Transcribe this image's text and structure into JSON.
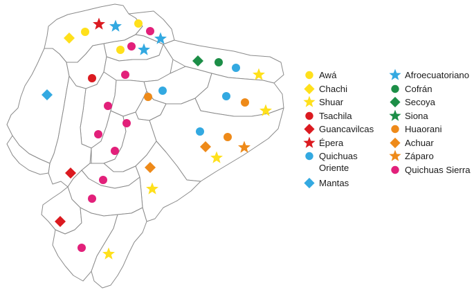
{
  "colors": {
    "yellow": "#FFE01B",
    "red": "#DB1A20",
    "blue": "#33A9E1",
    "green": "#1C8E47",
    "orange": "#EE8A19",
    "pink": "#E2207A"
  },
  "legend": {
    "items": [
      {
        "label": "Awá",
        "shape": "circle",
        "color": "yellow"
      },
      {
        "label": "Chachi",
        "shape": "diamond",
        "color": "yellow"
      },
      {
        "label": "Shuar",
        "shape": "star",
        "color": "yellow"
      },
      {
        "label": "Tsachila",
        "shape": "circle",
        "color": "red"
      },
      {
        "label": "Guancavilcas",
        "shape": "diamond",
        "color": "red"
      },
      {
        "label": "Épera",
        "shape": "star",
        "color": "red"
      },
      {
        "label": "Quichuas Oriente",
        "shape": "circle",
        "color": "blue"
      },
      {
        "label": "Mantas",
        "shape": "diamond",
        "color": "blue"
      },
      {
        "label": "Afroecuatoriano",
        "shape": "star",
        "color": "blue"
      },
      {
        "label": "Cofrán",
        "shape": "circle",
        "color": "green"
      },
      {
        "label": "Secoya",
        "shape": "diamond",
        "color": "green"
      },
      {
        "label": "Siona",
        "shape": "star",
        "color": "green"
      },
      {
        "label": "Huaorani",
        "shape": "circle",
        "color": "orange"
      },
      {
        "label": "Achuar",
        "shape": "diamond",
        "color": "orange"
      },
      {
        "label": "Záparo",
        "shape": "star",
        "color": "orange"
      },
      {
        "label": "Quichuas Sierra",
        "shape": "circle",
        "color": "pink"
      }
    ]
  },
  "markers": [
    {
      "group": "Chachi",
      "shape": "diamond",
      "color": "yellow"
    },
    {
      "group": "Awá",
      "shape": "circle",
      "color": "yellow"
    },
    {
      "group": "Awá",
      "shape": "circle",
      "color": "yellow"
    },
    {
      "group": "Awá",
      "shape": "circle",
      "color": "yellow"
    },
    {
      "group": "Épera",
      "shape": "star",
      "color": "red"
    },
    {
      "group": "Afroecuatoriano",
      "shape": "star",
      "color": "blue"
    },
    {
      "group": "Afroecuatoriano",
      "shape": "star",
      "color": "blue"
    },
    {
      "group": "Afroecuatoriano",
      "shape": "star",
      "color": "blue"
    },
    {
      "group": "Quichuas Sierra",
      "shape": "circle",
      "color": "pink"
    },
    {
      "group": "Quichuas Sierra",
      "shape": "circle",
      "color": "pink"
    },
    {
      "group": "Secoya",
      "shape": "diamond",
      "color": "green"
    },
    {
      "group": "Cofrán",
      "shape": "circle",
      "color": "green"
    },
    {
      "group": "Quichuas Oriente",
      "shape": "circle",
      "color": "blue"
    },
    {
      "group": "Shuar",
      "shape": "star",
      "color": "yellow"
    },
    {
      "group": "Tsachila",
      "shape": "circle",
      "color": "red"
    },
    {
      "group": "Quichuas Sierra",
      "shape": "circle",
      "color": "pink"
    },
    {
      "group": "Mantas",
      "shape": "diamond",
      "color": "blue"
    },
    {
      "group": "Quichuas Oriente",
      "shape": "circle",
      "color": "blue"
    },
    {
      "group": "Quichuas Sierra",
      "shape": "circle",
      "color": "pink"
    },
    {
      "group": "Huaorani",
      "shape": "circle",
      "color": "orange"
    },
    {
      "group": "Quichuas Oriente",
      "shape": "circle",
      "color": "blue"
    },
    {
      "group": "Huaorani",
      "shape": "circle",
      "color": "orange"
    },
    {
      "group": "Shuar",
      "shape": "star",
      "color": "yellow"
    },
    {
      "group": "Quichuas Sierra",
      "shape": "circle",
      "color": "pink"
    },
    {
      "group": "Quichuas Sierra",
      "shape": "circle",
      "color": "pink"
    },
    {
      "group": "Quichuas Oriente",
      "shape": "circle",
      "color": "blue"
    },
    {
      "group": "Huaorani",
      "shape": "circle",
      "color": "orange"
    },
    {
      "group": "Achuar",
      "shape": "diamond",
      "color": "orange"
    },
    {
      "group": "Záparo",
      "shape": "star",
      "color": "orange"
    },
    {
      "group": "Shuar",
      "shape": "star",
      "color": "yellow"
    },
    {
      "group": "Quichuas Sierra",
      "shape": "circle",
      "color": "pink"
    },
    {
      "group": "Achuar",
      "shape": "diamond",
      "color": "orange"
    },
    {
      "group": "Guancavilcas",
      "shape": "diamond",
      "color": "red"
    },
    {
      "group": "Quichuas Sierra",
      "shape": "circle",
      "color": "pink"
    },
    {
      "group": "Shuar",
      "shape": "star",
      "color": "yellow"
    },
    {
      "group": "Quichuas Sierra",
      "shape": "circle",
      "color": "pink"
    },
    {
      "group": "Guancavilcas",
      "shape": "diamond",
      "color": "red"
    },
    {
      "group": "Quichuas Sierra",
      "shape": "circle",
      "color": "pink"
    },
    {
      "group": "Shuar",
      "shape": "star",
      "color": "yellow"
    }
  ]
}
